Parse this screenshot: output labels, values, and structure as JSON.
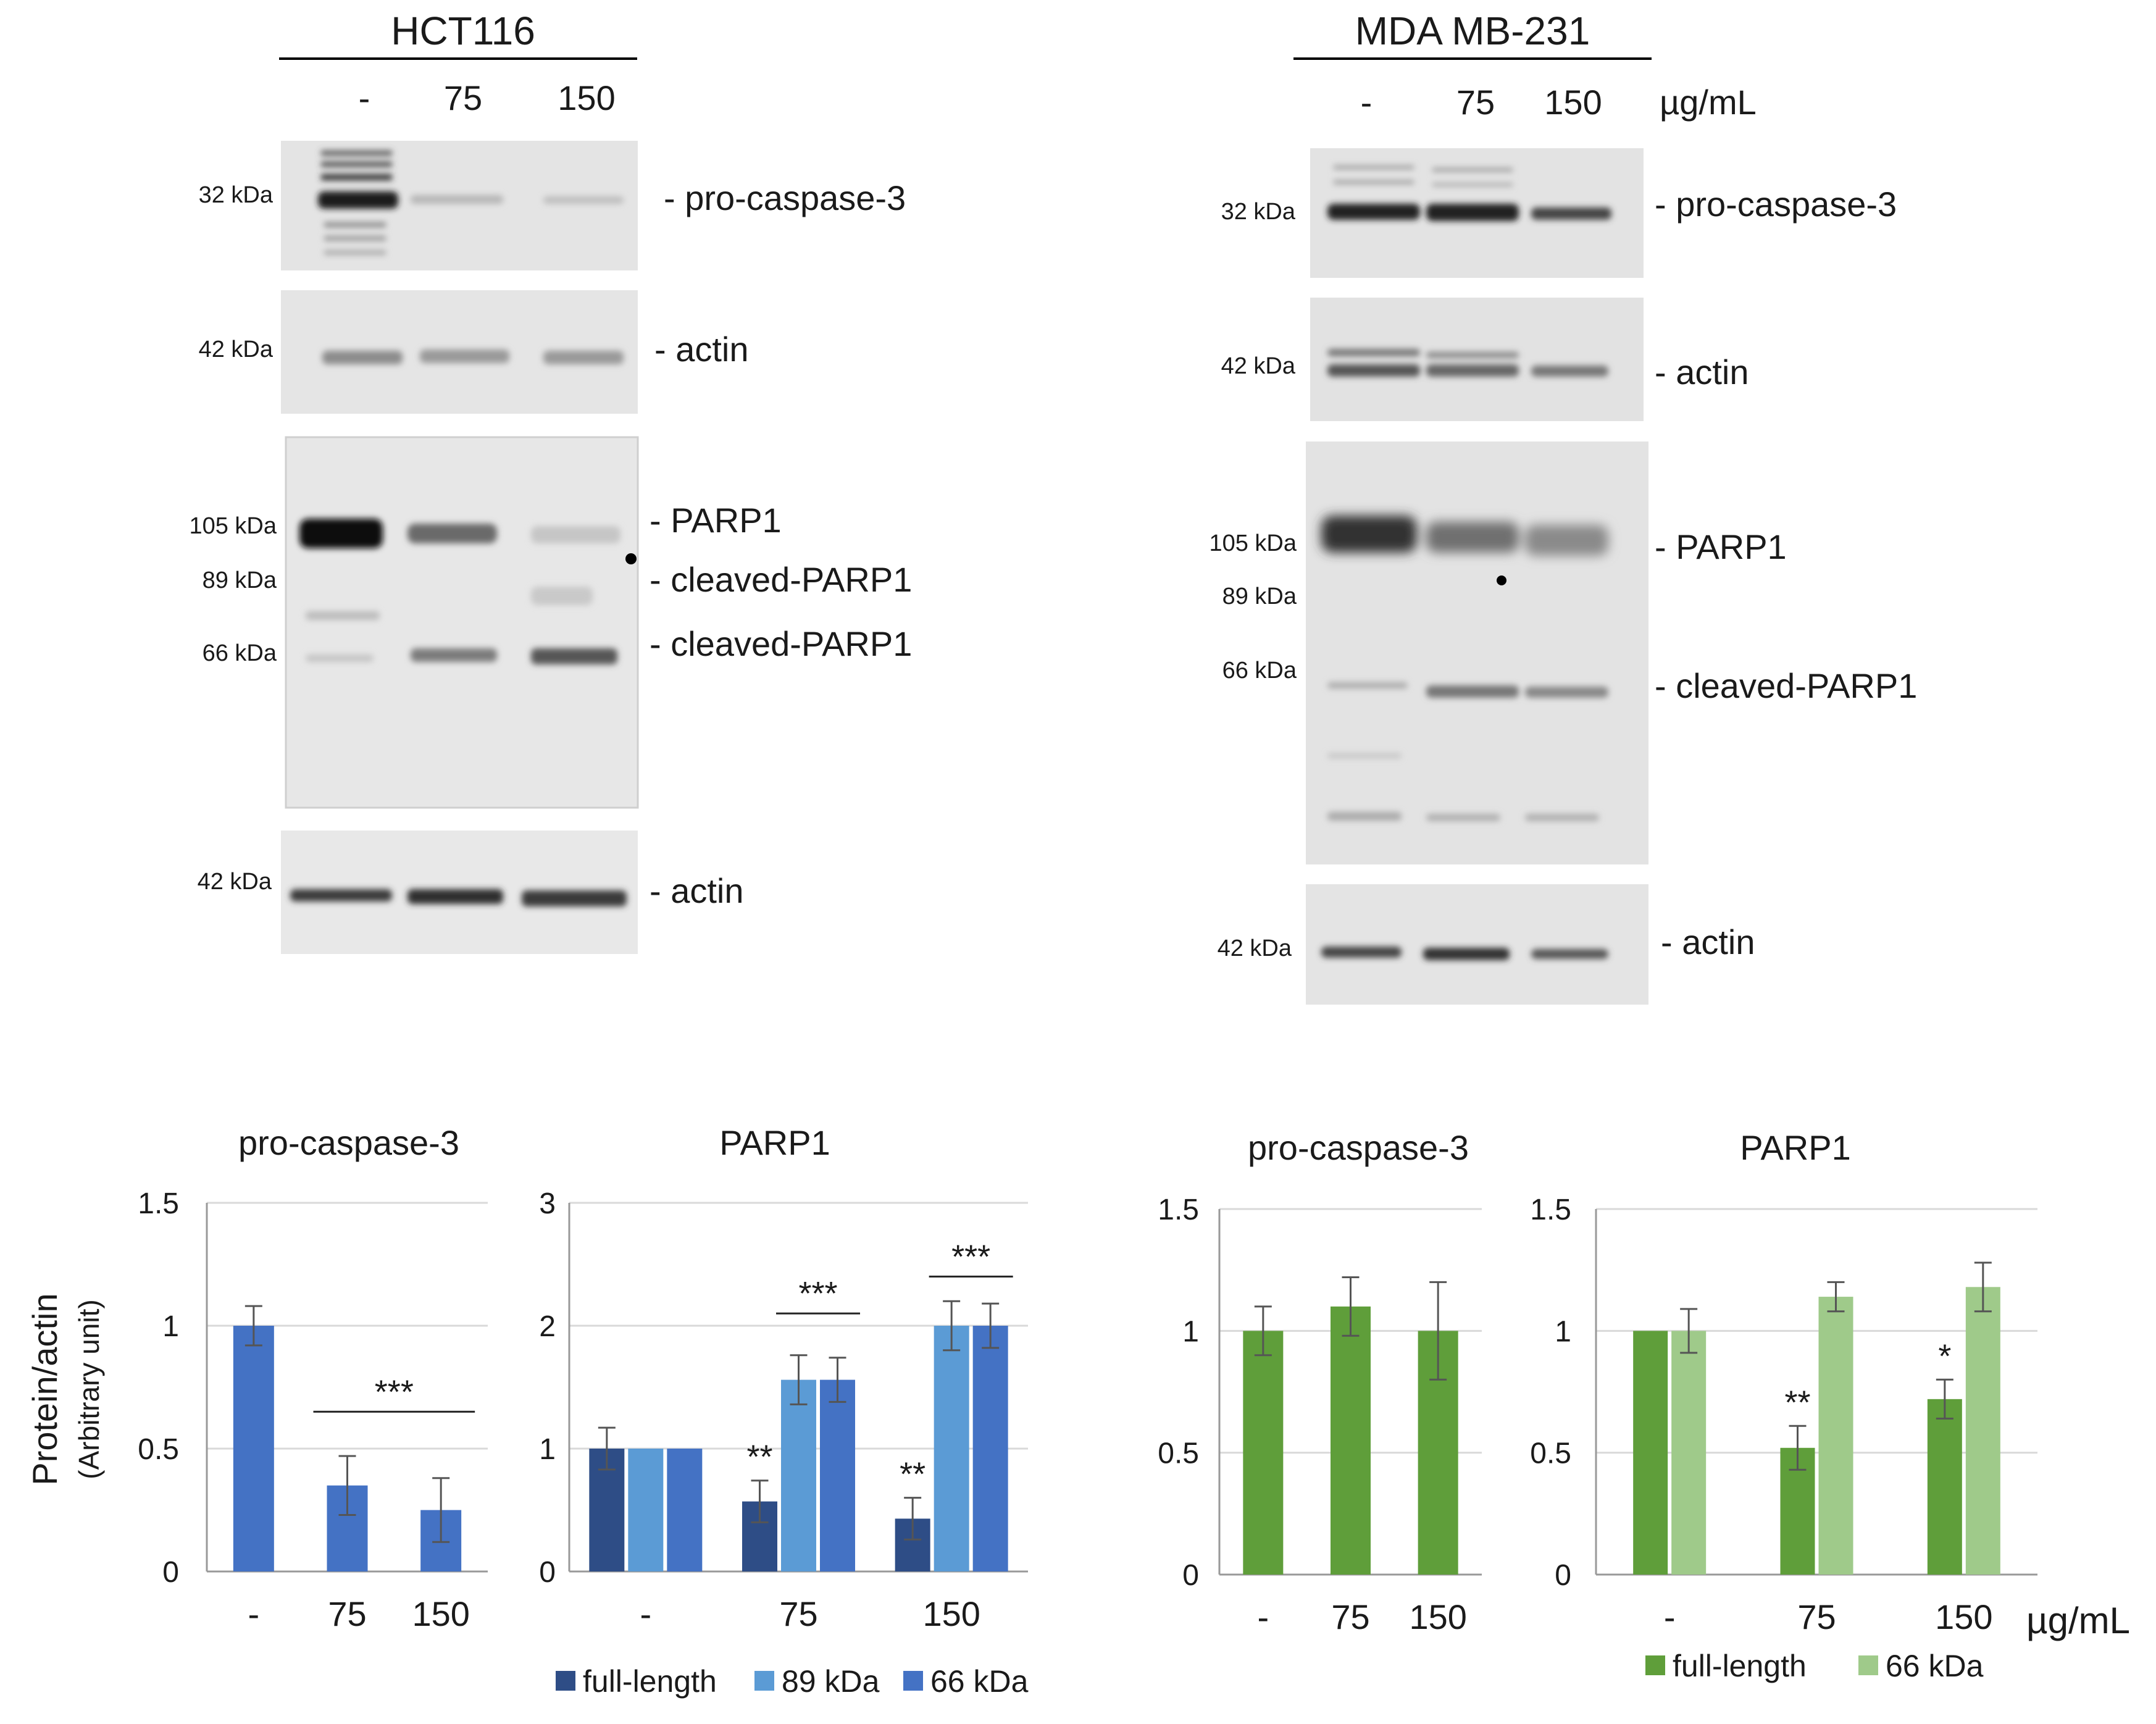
{
  "blots": {
    "hct116": {
      "title": "HCT116",
      "lanes": [
        "-",
        "75",
        "150"
      ],
      "unit": "",
      "markers": {
        "m32": "32 kDa",
        "m42a": "42 kDa",
        "m105": "105 kDa",
        "m89": "89 kDa",
        "m66": "66 kDa",
        "m42b": "42 kDa"
      },
      "labels": {
        "procasp": "- pro-caspase-3",
        "actin1": "- actin",
        "parp1": "- PARP1",
        "cleaved89": "- cleaved-PARP1",
        "cleaved66": "- cleaved-PARP1",
        "actin2": "- actin"
      }
    },
    "mda": {
      "title": "MDA MB-231",
      "lanes": [
        "-",
        "75",
        "150"
      ],
      "unit": "µg/mL",
      "markers": {
        "m32": "32 kDa",
        "m42a": "42 kDa",
        "m105": "105 kDa",
        "m89": "89 kDa",
        "m66": "66 kDa",
        "m42b": "42 kDa"
      },
      "labels": {
        "procasp": "- pro-caspase-3",
        "actin1": "- actin",
        "parp1": "- PARP1",
        "cleaved66": "- cleaved-PARP1",
        "actin2": "- actin"
      }
    }
  },
  "shared_ylabel": [
    "Protein/actin",
    "(Arbitrary unit)"
  ],
  "x_unit": "µg/mL",
  "colors": {
    "blue_dark": "#2e4d86",
    "blue_light": "#5b9bd5",
    "blue_mid": "#4472c4",
    "green": "#5f9e3a",
    "green_light": "#9fca8a",
    "axis": "#999999",
    "grid": "#d9d9d9",
    "error": "#555555"
  },
  "chart_data": [
    {
      "id": "hct_procasp",
      "type": "bar",
      "title": "pro-caspase-3",
      "categories": [
        "-",
        "75",
        "150"
      ],
      "ylim": [
        0,
        1.5
      ],
      "yticks": [
        "0",
        "0.5",
        "1",
        "1.5"
      ],
      "series": [
        {
          "values": [
            1.0,
            0.35,
            0.25
          ],
          "errors": [
            0.08,
            0.12,
            0.13
          ],
          "color": "#4472c4"
        }
      ],
      "annotations": [
        {
          "text": "***",
          "from": 1,
          "to": 2,
          "y": 0.65
        }
      ]
    },
    {
      "id": "hct_parp1",
      "type": "bar",
      "title": "PARP1",
      "categories": [
        "-",
        "75",
        "150"
      ],
      "ylim": [
        0,
        3
      ],
      "yticks": [
        "0",
        "1",
        "2",
        "3"
      ],
      "legend": [
        "full-length",
        "89 kDa",
        "66 kDa"
      ],
      "series": [
        {
          "name": "full-length",
          "values": [
            1.0,
            0.57,
            0.43
          ],
          "errors": [
            0.17,
            0.17,
            0.17
          ],
          "color": "#2e4d86",
          "stars": [
            "",
            "**",
            "**"
          ]
        },
        {
          "name": "89 kDa",
          "values": [
            1.0,
            1.56,
            2.0
          ],
          "errors": [
            0.0,
            0.2,
            0.2
          ],
          "color": "#5b9bd5"
        },
        {
          "name": "66 kDa",
          "values": [
            1.0,
            1.56,
            2.0
          ],
          "errors": [
            0.0,
            0.18,
            0.18
          ],
          "color": "#4472c4"
        }
      ],
      "annotations": [
        {
          "text": "***",
          "group": 1,
          "y": 2.1
        },
        {
          "text": "***",
          "group": 2,
          "y": 2.4
        }
      ]
    },
    {
      "id": "mda_procasp",
      "type": "bar",
      "title": "pro-caspase-3",
      "categories": [
        "-",
        "75",
        "150"
      ],
      "ylim": [
        0,
        1.5
      ],
      "yticks": [
        "0",
        "0.5",
        "1",
        "1.5"
      ],
      "series": [
        {
          "values": [
            1.0,
            1.1,
            1.0
          ],
          "errors": [
            0.1,
            0.12,
            0.2
          ],
          "color": "#5f9e3a"
        }
      ]
    },
    {
      "id": "mda_parp1",
      "type": "bar",
      "title": "PARP1",
      "categories": [
        "-",
        "75",
        "150"
      ],
      "ylim": [
        0,
        1.5
      ],
      "yticks": [
        "0",
        "0.5",
        "1",
        "1.5"
      ],
      "legend": [
        "full-length",
        "66 kDa"
      ],
      "series": [
        {
          "name": "full-length",
          "values": [
            1.0,
            0.52,
            0.72
          ],
          "errors": [
            0.0,
            0.09,
            0.08
          ],
          "color": "#5f9e3a",
          "stars": [
            "",
            "**",
            "*"
          ]
        },
        {
          "name": "66 kDa",
          "values": [
            1.0,
            1.14,
            1.18
          ],
          "errors": [
            0.09,
            0.06,
            0.1
          ],
          "color": "#9fca8a"
        }
      ]
    }
  ]
}
